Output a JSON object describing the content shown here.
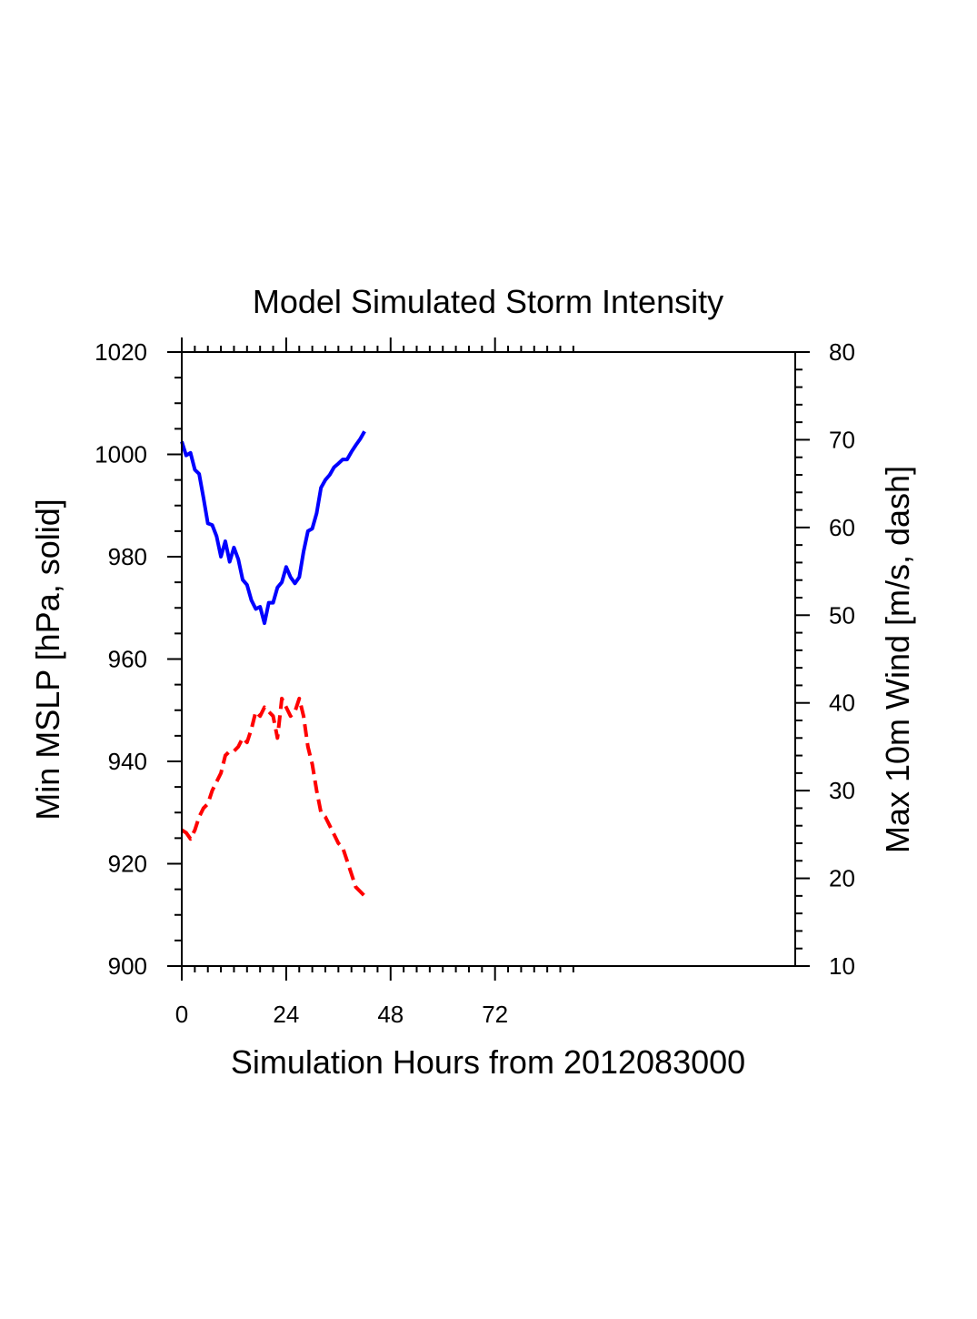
{
  "chart_data": {
    "type": "line",
    "title": "Model Simulated Storm Intensity",
    "xlabel": "Simulation Hours from 2012083000",
    "ylabel_left": "Min MSLP  [hPa, solid]",
    "ylabel_right": "Max 10m Wind  [m/s, dash]",
    "xlim": [
      0,
      141
    ],
    "ylim_left": [
      900,
      1020
    ],
    "ylim_right": [
      10,
      80
    ],
    "x_ticks": [
      0,
      24,
      48,
      72
    ],
    "y_ticks_left": [
      900,
      920,
      940,
      960,
      980,
      1000,
      1020
    ],
    "y_ticks_right": [
      10,
      20,
      30,
      40,
      50,
      60,
      70,
      80
    ],
    "grid": false,
    "colors": {
      "pressure": "#0000ff",
      "wind": "#ff0000"
    },
    "series": [
      {
        "axis": "left",
        "style": "solid",
        "x": [
          0,
          1,
          2,
          3,
          4,
          5,
          6,
          7,
          8,
          9,
          10,
          11,
          12,
          13,
          14,
          15,
          16,
          17,
          18,
          19,
          20,
          21,
          22,
          23,
          24,
          25,
          26,
          27,
          28,
          29,
          30,
          31,
          32,
          33,
          34,
          35,
          36,
          37,
          38,
          39,
          40,
          41,
          42
        ],
        "values": [
          1002.5,
          999.8,
          1000.3,
          997.0,
          996.2,
          991.5,
          986.5,
          986.2,
          984.0,
          980.0,
          983.0,
          979.0,
          981.8,
          979.5,
          975.5,
          974.5,
          971.5,
          969.8,
          970.2,
          967.0,
          971.0,
          971.0,
          974.0,
          975.0,
          978.0,
          976.0,
          974.8,
          976.0,
          981.0,
          985.0,
          985.5,
          988.5,
          993.5,
          995.0,
          996.0,
          997.5,
          998.2,
          999.0,
          999.0,
          1000.5,
          1001.8,
          1003.0,
          1004.5
        ]
      },
      {
        "axis": "right",
        "style": "dash",
        "x": [
          0,
          1,
          2,
          3,
          4,
          5,
          6,
          7,
          8,
          9,
          10,
          11,
          12,
          13,
          14,
          15,
          16,
          17,
          18,
          19,
          20,
          21,
          22,
          23,
          24,
          25,
          26,
          27,
          28,
          29,
          30,
          31,
          32,
          33,
          34,
          35,
          36,
          37,
          38,
          39,
          40,
          41,
          42
        ],
        "values": [
          25.5,
          25.2,
          24.5,
          25.5,
          27.0,
          28.0,
          28.5,
          30.0,
          31.0,
          32.0,
          34.0,
          34.5,
          34.5,
          35.0,
          36.0,
          35.5,
          37.0,
          39.0,
          38.5,
          39.5,
          39.0,
          38.5,
          36.0,
          40.5,
          39.5,
          38.5,
          39.0,
          40.5,
          38.5,
          35.0,
          33.0,
          30.0,
          27.5,
          27.0,
          26.0,
          25.0,
          24.0,
          23.5,
          22.0,
          20.5,
          19.0,
          18.5,
          18.0
        ]
      }
    ]
  }
}
